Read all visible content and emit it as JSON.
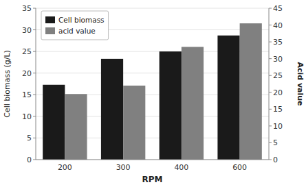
{
  "chart_data": {
    "type": "bar",
    "xlabel": "RPM",
    "ylabel": "Cell biomass (g/L)",
    "y2label": "Acid value",
    "categories": [
      "200",
      "300",
      "400",
      "600"
    ],
    "series": [
      {
        "name": "Cell biomass",
        "color": "#1a1a1a",
        "values": [
          17.3,
          23.3,
          25.0,
          28.7
        ]
      },
      {
        "name": "acid value",
        "color": "#808080",
        "values": [
          19.5,
          22.0,
          33.5,
          40.5
        ],
        "axis": "y2"
      }
    ],
    "ylim": [
      0,
      35
    ],
    "yticks": [
      0,
      5,
      10,
      15,
      20,
      25,
      30,
      35
    ],
    "y2lim": [
      0,
      45
    ],
    "y2ticks": [
      0,
      5,
      10,
      15,
      20,
      25,
      30,
      35,
      40,
      45
    ],
    "grid": true,
    "legend": "upper left"
  }
}
